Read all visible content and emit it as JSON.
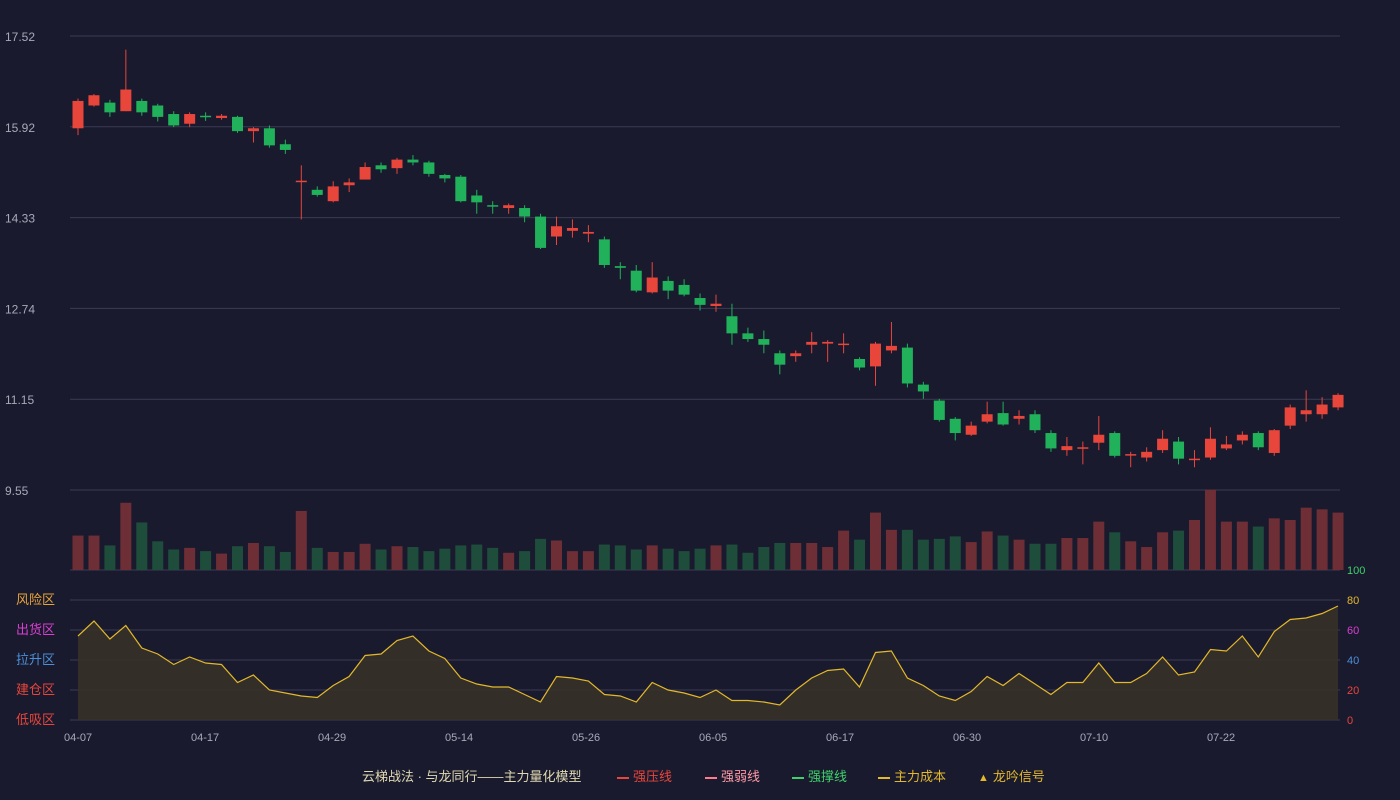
{
  "colors": {
    "background": "#191a2e",
    "up": "#e8463b",
    "down": "#20b15a",
    "vol_up": "#6e2e35",
    "vol_down": "#1f4d3c",
    "grid": "#3a3b52",
    "axis_text": "#a8aab8",
    "indicator_line": "#e3b82a",
    "indicator_fill": "#3a3328"
  },
  "chart_data": [
    {
      "type": "candlestick",
      "title": "",
      "y_ticks": [
        "17.52",
        "15.92",
        "14.33",
        "12.74",
        "11.15",
        "9.55"
      ],
      "ylim": [
        9.55,
        17.52
      ],
      "grid": true,
      "x_tick_labels": [
        "04-07",
        "04-17",
        "04-29",
        "05-14",
        "05-26",
        "06-05",
        "06-17",
        "06-30",
        "07-10",
        "07-22"
      ],
      "ohlc": [
        [
          15.9,
          16.38,
          15.78,
          16.42
        ],
        [
          16.3,
          16.48,
          16.28,
          16.5
        ],
        [
          16.35,
          16.18,
          16.1,
          16.4
        ],
        [
          16.2,
          16.58,
          16.2,
          17.28
        ],
        [
          16.38,
          16.18,
          16.12,
          16.42
        ],
        [
          16.3,
          16.1,
          16.02,
          16.33
        ],
        [
          16.15,
          15.95,
          15.92,
          16.2
        ],
        [
          15.98,
          16.15,
          15.92,
          16.18
        ],
        [
          16.12,
          16.1,
          16.03,
          16.18
        ],
        [
          16.08,
          16.12,
          16.05,
          16.15
        ],
        [
          16.1,
          15.85,
          15.82,
          16.12
        ],
        [
          15.85,
          15.9,
          15.65,
          15.92
        ],
        [
          15.9,
          15.6,
          15.56,
          15.95
        ],
        [
          15.62,
          15.52,
          15.45,
          15.7
        ],
        [
          14.97,
          14.98,
          14.3,
          15.25
        ],
        [
          14.82,
          14.73,
          14.7,
          14.88
        ],
        [
          14.62,
          14.88,
          14.6,
          14.97
        ],
        [
          14.9,
          14.95,
          14.78,
          15.02
        ],
        [
          15.0,
          15.22,
          15.0,
          15.3
        ],
        [
          15.25,
          15.18,
          15.12,
          15.3
        ],
        [
          15.2,
          15.35,
          15.1,
          15.38
        ],
        [
          15.35,
          15.3,
          15.25,
          15.43
        ],
        [
          15.3,
          15.1,
          15.05,
          15.33
        ],
        [
          15.08,
          15.02,
          14.95,
          15.1
        ],
        [
          15.05,
          14.62,
          14.6,
          15.08
        ],
        [
          14.72,
          14.6,
          14.4,
          14.82
        ],
        [
          14.55,
          14.53,
          14.4,
          14.62
        ],
        [
          14.5,
          14.55,
          14.4,
          14.58
        ],
        [
          14.5,
          14.35,
          14.25,
          14.55
        ],
        [
          14.35,
          13.8,
          13.78,
          14.4
        ],
        [
          14.0,
          14.18,
          13.85,
          14.35
        ],
        [
          14.1,
          14.15,
          13.98,
          14.3
        ],
        [
          14.05,
          14.08,
          13.9,
          14.2
        ],
        [
          13.95,
          13.5,
          13.45,
          14.0
        ],
        [
          13.48,
          13.45,
          13.25,
          13.55
        ],
        [
          13.4,
          13.05,
          13.02,
          13.5
        ],
        [
          13.02,
          13.28,
          13.0,
          13.55
        ],
        [
          13.22,
          13.05,
          12.9,
          13.3
        ],
        [
          13.15,
          12.98,
          12.95,
          13.25
        ],
        [
          12.92,
          12.8,
          12.7,
          13.0
        ],
        [
          12.78,
          12.82,
          12.68,
          12.98
        ],
        [
          12.6,
          12.3,
          12.1,
          12.82
        ],
        [
          12.3,
          12.2,
          12.15,
          12.4
        ],
        [
          12.2,
          12.1,
          11.95,
          12.35
        ],
        [
          11.95,
          11.75,
          11.58,
          12.0
        ],
        [
          11.9,
          11.95,
          11.8,
          12.0
        ],
        [
          12.1,
          12.15,
          11.95,
          12.32
        ],
        [
          12.12,
          12.15,
          11.8,
          12.18
        ],
        [
          12.12,
          12.12,
          11.95,
          12.3
        ],
        [
          11.85,
          11.7,
          11.65,
          11.88
        ],
        [
          11.72,
          12.12,
          11.38,
          12.15
        ],
        [
          12.0,
          12.08,
          11.95,
          12.5
        ],
        [
          12.05,
          11.42,
          11.35,
          12.12
        ],
        [
          11.4,
          11.28,
          11.15,
          11.45
        ],
        [
          11.12,
          10.78,
          10.75,
          11.15
        ],
        [
          10.8,
          10.55,
          10.42,
          10.83
        ],
        [
          10.52,
          10.68,
          10.5,
          10.75
        ],
        [
          10.75,
          10.88,
          10.72,
          11.1
        ],
        [
          10.9,
          10.7,
          10.68,
          11.1
        ],
        [
          10.8,
          10.85,
          10.7,
          10.95
        ],
        [
          10.88,
          10.6,
          10.55,
          10.95
        ],
        [
          10.55,
          10.28,
          10.22,
          10.6
        ],
        [
          10.25,
          10.32,
          10.15,
          10.48
        ],
        [
          10.3,
          10.3,
          10.0,
          10.4
        ],
        [
          10.38,
          10.52,
          10.25,
          10.85
        ],
        [
          10.55,
          10.15,
          10.12,
          10.58
        ],
        [
          10.18,
          10.18,
          9.95,
          10.22
        ],
        [
          10.12,
          10.22,
          10.05,
          10.3
        ],
        [
          10.25,
          10.45,
          10.2,
          10.6
        ],
        [
          10.4,
          10.1,
          10.0,
          10.48
        ],
        [
          10.08,
          10.1,
          9.95,
          10.25
        ],
        [
          10.12,
          10.45,
          10.08,
          10.65
        ],
        [
          10.28,
          10.35,
          10.25,
          10.5
        ],
        [
          10.42,
          10.52,
          10.35,
          10.58
        ],
        [
          10.55,
          10.3,
          10.25,
          10.58
        ],
        [
          10.2,
          10.6,
          10.15,
          10.62
        ],
        [
          10.68,
          11.0,
          10.62,
          11.05
        ],
        [
          10.88,
          10.95,
          10.75,
          11.3
        ],
        [
          10.88,
          11.05,
          10.8,
          11.18
        ],
        [
          11.0,
          11.22,
          10.95,
          11.25
        ]
      ]
    },
    {
      "type": "bar",
      "title": "",
      "values": [
        0.42,
        0.42,
        0.3,
        0.82,
        0.58,
        0.35,
        0.25,
        0.27,
        0.23,
        0.2,
        0.29,
        0.33,
        0.29,
        0.22,
        0.72,
        0.27,
        0.22,
        0.22,
        0.32,
        0.25,
        0.29,
        0.28,
        0.23,
        0.26,
        0.3,
        0.31,
        0.27,
        0.21,
        0.23,
        0.38,
        0.36,
        0.23,
        0.23,
        0.31,
        0.3,
        0.25,
        0.3,
        0.26,
        0.23,
        0.26,
        0.3,
        0.31,
        0.21,
        0.28,
        0.33,
        0.33,
        0.33,
        0.28,
        0.48,
        0.37,
        0.7,
        0.49,
        0.49,
        0.37,
        0.38,
        0.41,
        0.34,
        0.47,
        0.42,
        0.37,
        0.32,
        0.32,
        0.39,
        0.39,
        0.59,
        0.46,
        0.35,
        0.28,
        0.46,
        0.48,
        0.61,
        0.98,
        0.59,
        0.59,
        0.53,
        0.63,
        0.61,
        0.76,
        0.74,
        0.7
      ]
    },
    {
      "type": "area",
      "title": "",
      "series": [
        {
          "values": [
            56,
            66,
            54,
            63,
            48,
            44,
            37,
            42,
            38,
            37,
            25,
            30,
            20,
            18,
            16,
            15,
            23,
            29,
            43,
            44,
            53,
            56,
            46,
            41,
            28,
            24,
            22,
            22,
            17,
            12,
            29,
            28,
            26,
            17,
            16,
            12,
            25,
            20,
            18,
            15,
            20,
            13,
            13,
            12,
            10,
            20,
            28,
            33,
            34,
            22,
            45,
            46,
            28,
            23,
            16,
            13,
            19,
            29,
            23,
            31,
            24,
            17,
            25,
            25,
            38,
            25,
            25,
            31,
            42,
            30,
            32,
            47,
            46,
            56,
            42,
            59,
            67,
            68,
            71,
            76
          ]
        }
      ],
      "ylim": [
        0,
        100
      ],
      "right_ticks": [
        "100",
        "80",
        "60",
        "40",
        "20",
        "0"
      ],
      "zones": [
        {
          "label": "风险区",
          "color": "#e8a33a"
        },
        {
          "label": "出货区",
          "color": "#d93fd0"
        },
        {
          "label": "拉升区",
          "color": "#4c8fd6"
        },
        {
          "label": "建仓区",
          "color": "#e8463b"
        },
        {
          "label": "低吸区",
          "color": "#e8463b"
        }
      ],
      "right_tick_colors": [
        "#3fd06a",
        "#e3b82a",
        "#d93fd0",
        "#4c8fd6",
        "#e8463b",
        "#e8463b"
      ]
    }
  ],
  "legend": {
    "title": "云梯战法 · 与龙同行——主力量化模型",
    "items": [
      {
        "label": "强压线",
        "color": "#e8463b",
        "style": "solid"
      },
      {
        "label": "强弱线",
        "color": "#ff7b8a",
        "style": "dashed"
      },
      {
        "label": "强撑线",
        "color": "#3fd06a",
        "style": "solid"
      },
      {
        "label": "主力成本",
        "color": "#e3b82a",
        "style": "dashed"
      },
      {
        "label": "龙吟信号",
        "color": "#e3b82a",
        "style": "triangle"
      }
    ]
  }
}
